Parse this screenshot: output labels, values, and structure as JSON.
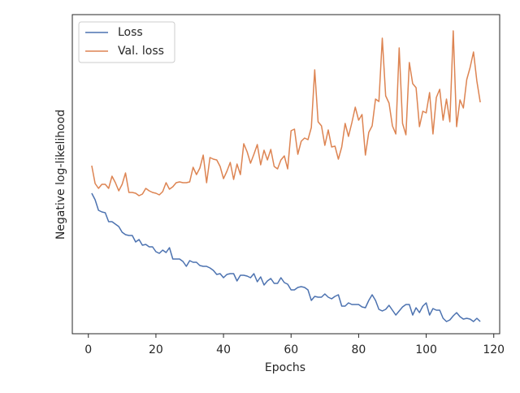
{
  "chart_data": {
    "type": "line",
    "xlabel": "Epochs",
    "ylabel": "Negative log-likelihood",
    "x": [
      1,
      2,
      3,
      4,
      5,
      6,
      7,
      8,
      9,
      10,
      11,
      12,
      13,
      14,
      15,
      16,
      17,
      18,
      19,
      20,
      21,
      22,
      23,
      24,
      25,
      26,
      27,
      28,
      29,
      30,
      31,
      32,
      33,
      34,
      35,
      36,
      37,
      38,
      39,
      40,
      41,
      42,
      43,
      44,
      45,
      46,
      47,
      48,
      49,
      50,
      51,
      52,
      53,
      54,
      55,
      56,
      57,
      58,
      59,
      60,
      61,
      62,
      63,
      64,
      65,
      66,
      67,
      68,
      69,
      70,
      71,
      72,
      73,
      74,
      75,
      76,
      77,
      78,
      79,
      80,
      81,
      82,
      83,
      84,
      85,
      86,
      87,
      88,
      89,
      90,
      91,
      92,
      93,
      94,
      95,
      96,
      97,
      98,
      99,
      100,
      101,
      102,
      103,
      104,
      105,
      106,
      107,
      108,
      109,
      110,
      111,
      112,
      113,
      114,
      115,
      116
    ],
    "series": [
      {
        "name": "Loss",
        "color": "#4c72b0",
        "values": [
          17.3,
          16.5,
          15.2,
          15.0,
          14.9,
          13.8,
          13.8,
          13.5,
          13.2,
          12.5,
          12.2,
          12.1,
          12.1,
          11.3,
          11.6,
          10.9,
          11.0,
          10.7,
          10.7,
          10.1,
          9.9,
          10.3,
          10.0,
          10.6,
          9.2,
          9.2,
          9.2,
          8.9,
          8.3,
          9.0,
          8.8,
          8.8,
          8.4,
          8.3,
          8.3,
          8.1,
          7.8,
          7.3,
          7.4,
          6.9,
          7.3,
          7.4,
          7.4,
          6.5,
          7.2,
          7.2,
          7.1,
          6.9,
          7.4,
          6.4,
          7.0,
          6.0,
          6.5,
          6.8,
          6.2,
          6.2,
          6.9,
          6.3,
          6.1,
          5.4,
          5.4,
          5.7,
          5.8,
          5.7,
          5.4,
          4.1,
          4.6,
          4.5,
          4.5,
          4.9,
          4.5,
          4.3,
          4.6,
          4.8,
          3.4,
          3.4,
          3.8,
          3.6,
          3.6,
          3.6,
          3.3,
          3.2,
          4.1,
          4.8,
          4.1,
          3.0,
          2.8,
          3.0,
          3.5,
          2.9,
          2.3,
          2.8,
          3.3,
          3.6,
          3.6,
          2.3,
          3.2,
          2.6,
          3.4,
          3.8,
          2.3,
          3.1,
          2.9,
          2.9,
          1.9,
          1.5,
          1.7,
          2.2,
          2.6,
          2.1,
          1.8,
          1.9,
          1.8,
          1.5,
          1.9,
          1.5
        ]
      },
      {
        "name": "Val. loss",
        "color": "#dd8452",
        "values": [
          20.7,
          18.5,
          17.9,
          18.4,
          18.4,
          17.9,
          19.4,
          18.6,
          17.6,
          18.4,
          19.8,
          17.4,
          17.4,
          17.3,
          17.0,
          17.2,
          17.9,
          17.6,
          17.4,
          17.3,
          17.1,
          17.5,
          18.6,
          17.8,
          18.1,
          18.6,
          18.7,
          18.6,
          18.6,
          18.7,
          20.5,
          19.6,
          20.4,
          22.0,
          18.6,
          21.7,
          21.5,
          21.4,
          20.6,
          19.1,
          20.0,
          21.1,
          19.0,
          20.9,
          19.6,
          23.4,
          22.4,
          21.0,
          22.1,
          23.3,
          20.8,
          22.6,
          21.4,
          22.7,
          20.6,
          20.3,
          21.4,
          21.9,
          20.3,
          25.0,
          25.2,
          22.1,
          23.7,
          24.1,
          23.9,
          25.4,
          32.5,
          26.1,
          25.6,
          23.2,
          25.1,
          23.0,
          23.1,
          21.5,
          23.0,
          25.9,
          24.3,
          26.0,
          27.9,
          26.3,
          27.0,
          22.0,
          24.8,
          25.6,
          28.9,
          28.6,
          36.4,
          29.3,
          28.4,
          25.6,
          24.6,
          35.2,
          25.9,
          24.5,
          33.4,
          30.8,
          30.3,
          25.5,
          27.4,
          27.2,
          29.7,
          24.6,
          29.1,
          30.1,
          26.3,
          28.9,
          26.1,
          37.3,
          25.5,
          28.8,
          27.8,
          31.3,
          32.8,
          34.7,
          31.1,
          28.5
        ]
      }
    ],
    "xlim": [
      -4.75,
      121.75
    ],
    "xticks": [
      0,
      20,
      40,
      60,
      80,
      100,
      120
    ],
    "ylim": [
      0,
      39.3
    ],
    "legend": "upper left",
    "grid": false
  }
}
